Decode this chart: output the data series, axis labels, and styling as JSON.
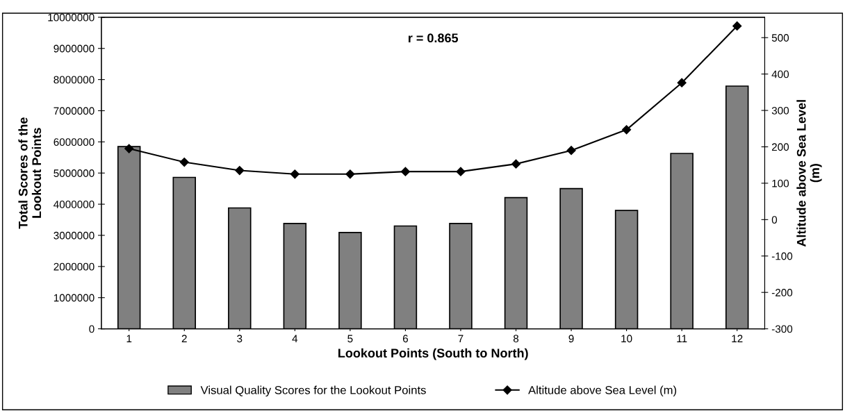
{
  "chart_data": {
    "type": "bar",
    "xlabel": "Lookout Points (South to North)",
    "ylabel": "Total Scores of the\nLookout Points",
    "y2label": "Altitude above Sea Level\n(m)",
    "annotations": [
      "r = 0.865"
    ],
    "categories": [
      "1",
      "2",
      "3",
      "4",
      "5",
      "6",
      "7",
      "8",
      "9",
      "10",
      "11",
      "12"
    ],
    "series": [
      {
        "name": "Visual Quality Scores for the Lookout Points",
        "color": "#808080",
        "values": [
          5850000,
          4860000,
          3880000,
          3380000,
          3090000,
          3300000,
          3380000,
          4210000,
          4500000,
          3800000,
          5630000,
          7790000
        ]
      },
      {
        "name": "Altitude above Sea Level (m)",
        "type": "line",
        "axis": "y2",
        "color": "#000000",
        "marker": "diamond",
        "values": [
          195,
          158,
          135,
          125,
          125,
          132,
          132,
          153,
          190,
          247,
          376,
          532
        ]
      }
    ],
    "ylim": [
      0,
      10000000
    ],
    "yticks": [
      0,
      1000000,
      2000000,
      3000000,
      4000000,
      5000000,
      6000000,
      7000000,
      8000000,
      9000000,
      10000000
    ],
    "y2lim": [
      -300,
      556
    ],
    "y2ticks": [
      -300,
      -200,
      -100,
      0,
      100,
      200,
      300,
      400,
      500
    ],
    "grid": false,
    "legend": "bottom"
  }
}
